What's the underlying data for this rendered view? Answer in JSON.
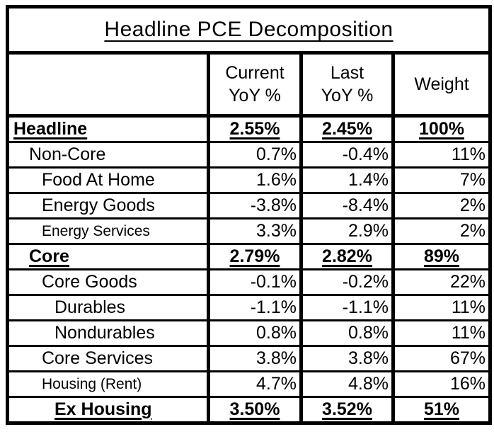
{
  "chart_data": {
    "type": "table",
    "title": "Headline PCE Decomposition",
    "column_headers": [
      "",
      "Current\nYoY %",
      "Last\nYoY %",
      "Weight"
    ],
    "rows": [
      {
        "label": "Headline",
        "current_yoy": "2.55%",
        "last_yoy": "2.45%",
        "weight": "100%",
        "indent": 0,
        "style": "bold-underline"
      },
      {
        "label": "Non-Core",
        "current_yoy": "0.7%",
        "last_yoy": "-0.4%",
        "weight": "11%",
        "indent": 1,
        "style": "regular"
      },
      {
        "label": "Food At Home",
        "current_yoy": "1.6%",
        "last_yoy": "1.4%",
        "weight": "7%",
        "indent": 2,
        "style": "regular"
      },
      {
        "label": "Energy Goods",
        "current_yoy": "-3.8%",
        "last_yoy": "-8.4%",
        "weight": "2%",
        "indent": 2,
        "style": "regular"
      },
      {
        "label": "Energy Services",
        "current_yoy": "3.3%",
        "last_yoy": "2.9%",
        "weight": "2%",
        "indent": 2,
        "style": "regular-small"
      },
      {
        "label": "Core",
        "current_yoy": "2.79%",
        "last_yoy": "2.82%",
        "weight": "89%",
        "indent": 1,
        "style": "bold-underline"
      },
      {
        "label": "Core Goods",
        "current_yoy": "-0.1%",
        "last_yoy": "-0.2%",
        "weight": "22%",
        "indent": 2,
        "style": "regular"
      },
      {
        "label": "Durables",
        "current_yoy": "-1.1%",
        "last_yoy": "-1.1%",
        "weight": "11%",
        "indent": 3,
        "style": "regular"
      },
      {
        "label": "Nondurables",
        "current_yoy": "0.8%",
        "last_yoy": "0.8%",
        "weight": "11%",
        "indent": 3,
        "style": "regular"
      },
      {
        "label": "Core Services",
        "current_yoy": "3.8%",
        "last_yoy": "3.8%",
        "weight": "67%",
        "indent": 2,
        "style": "regular"
      },
      {
        "label": "Housing (Rent)",
        "current_yoy": "4.7%",
        "last_yoy": "4.8%",
        "weight": "16%",
        "indent": 2,
        "style": "regular-small"
      },
      {
        "label": "Ex Housing",
        "current_yoy": "3.50%",
        "last_yoy": "3.52%",
        "weight": "51%",
        "indent": 3,
        "style": "bold-underline"
      }
    ],
    "colors": {
      "text": "#000000",
      "background": "#ffffff",
      "border": "#000000"
    },
    "layout": {
      "grid": "on",
      "summary_rows_centered_underlined": true,
      "detail_rows_right_aligned": true
    }
  }
}
